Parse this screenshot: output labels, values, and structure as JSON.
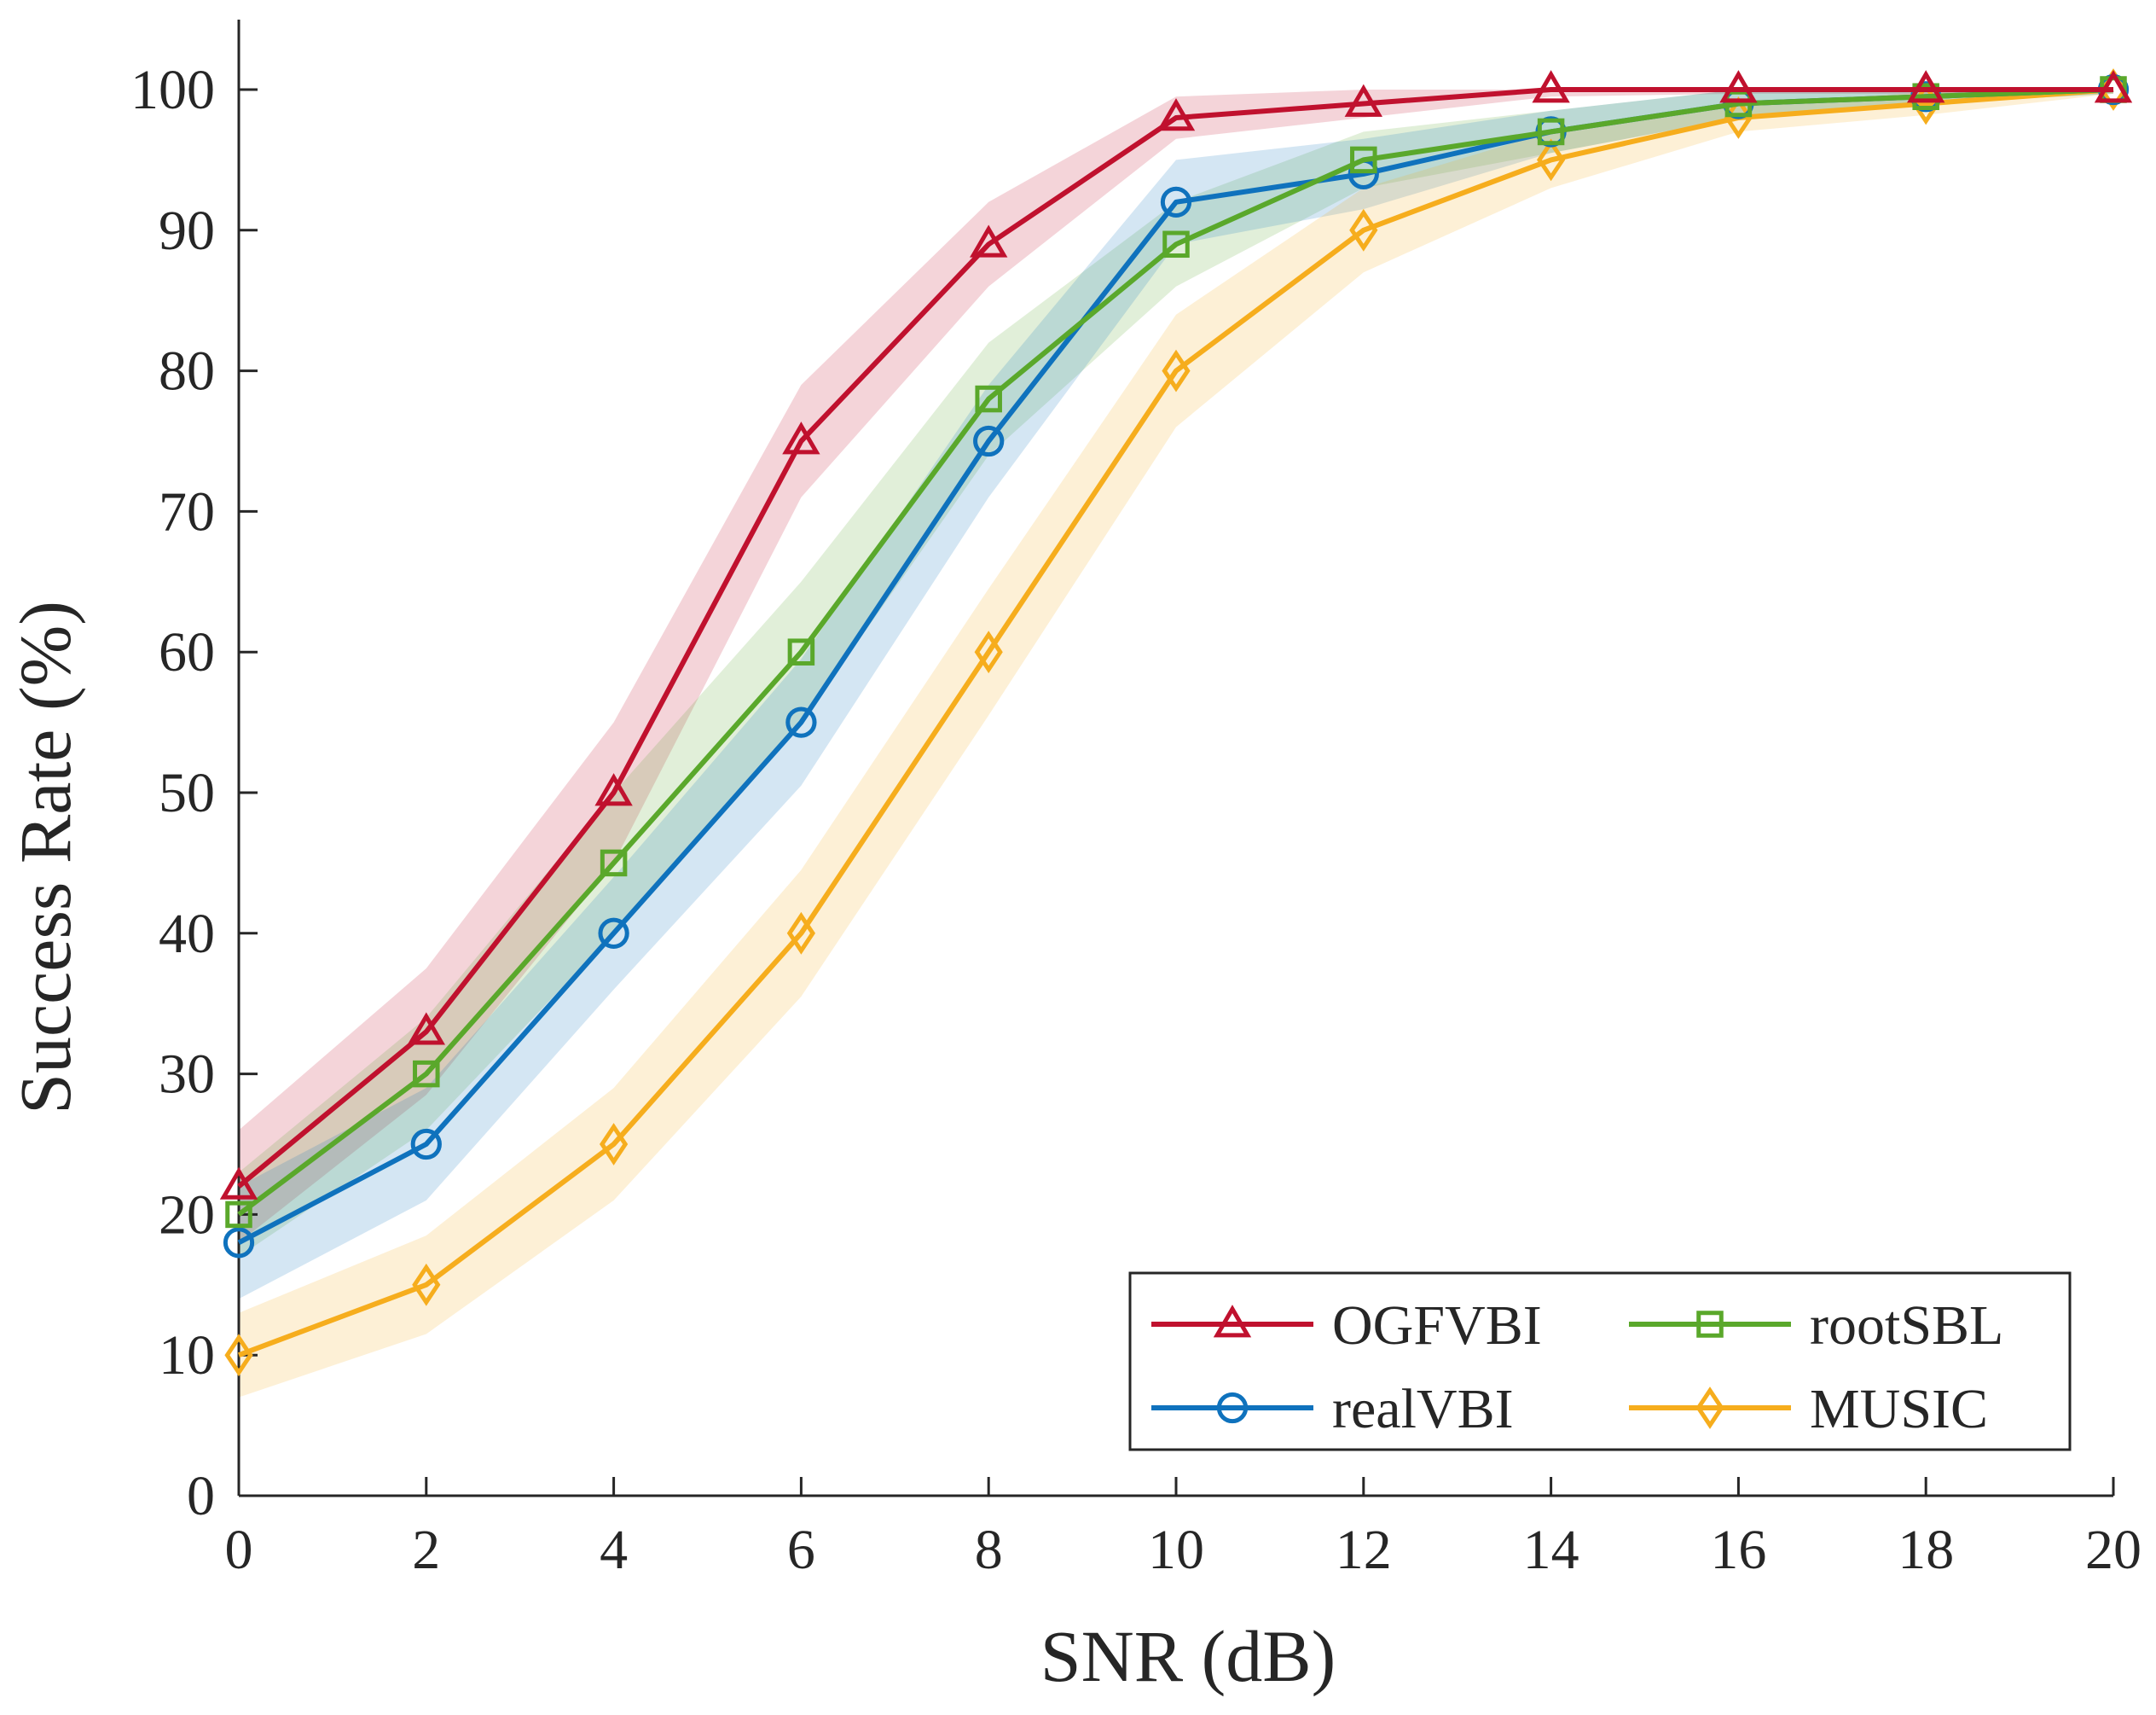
{
  "chart_data": {
    "type": "line",
    "title": "",
    "xlabel": "SNR (dB)",
    "ylabel": "Success Rate (%)",
    "xlim": [
      0,
      20
    ],
    "ylim": [
      0,
      100
    ],
    "x_ticks": [
      0,
      2,
      4,
      6,
      8,
      10,
      12,
      14,
      16,
      18,
      20
    ],
    "y_ticks": [
      0,
      10,
      20,
      30,
      40,
      50,
      60,
      70,
      80,
      90,
      100
    ],
    "grid": false,
    "legend_position": "bottom-right",
    "x": [
      0,
      2,
      4,
      6,
      8,
      10,
      12,
      14,
      16,
      18,
      20
    ],
    "series": [
      {
        "name": "OGFVBI",
        "color": "#c0112e",
        "marker": "triangle",
        "values": [
          22,
          33,
          50,
          75,
          89,
          98,
          99,
          100,
          100,
          100,
          100
        ],
        "band": [
          4,
          4.5,
          5,
          4,
          3,
          1.5,
          1,
          0.5,
          0.3,
          0.3,
          0.2
        ]
      },
      {
        "name": "rootSBL",
        "color": "#5aa82b",
        "marker": "square",
        "values": [
          20,
          30,
          45,
          60,
          78,
          89,
          95,
          97,
          99,
          99.5,
          100
        ],
        "band": [
          3,
          4,
          5,
          5,
          4,
          3,
          2,
          1.5,
          1,
          0.5,
          0.3
        ]
      },
      {
        "name": "realVBI",
        "color": "#0f72bd",
        "marker": "circle",
        "values": [
          18,
          25,
          40,
          55,
          75,
          92,
          94,
          97,
          99,
          99.5,
          100
        ],
        "band": [
          4,
          4,
          4,
          4.5,
          4,
          3,
          2.5,
          1.5,
          1,
          0.5,
          0.3
        ]
      },
      {
        "name": "MUSIC",
        "color": "#f6ad1d",
        "marker": "diamond",
        "values": [
          10,
          15,
          25,
          40,
          60,
          80,
          90,
          95,
          98,
          99,
          100
        ],
        "band": [
          3,
          3.5,
          4,
          4.5,
          4.5,
          4,
          3,
          2,
          1,
          0.8,
          0.3
        ]
      }
    ],
    "legend_order": [
      "OGFVBI",
      "rootSBL",
      "realVBI",
      "MUSIC"
    ]
  }
}
